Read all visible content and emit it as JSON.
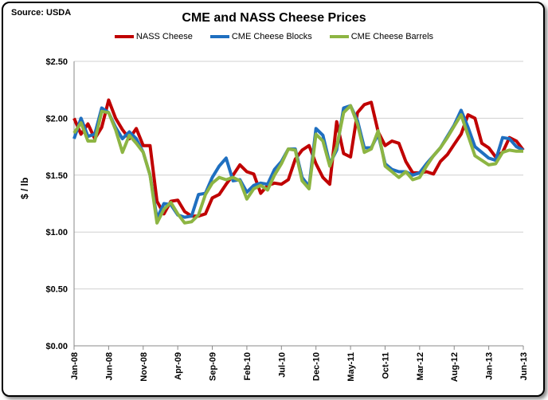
{
  "chart_data": {
    "type": "line",
    "title": "CME and NASS Cheese Prices",
    "source": "Source: USDA",
    "xlabel": "",
    "ylabel": "$ / lb",
    "ylim": [
      0,
      2.5
    ],
    "yticks": [
      "$0.00",
      "$0.50",
      "$1.00",
      "$1.50",
      "$2.00",
      "$2.50"
    ],
    "ytick_values": [
      0,
      0.5,
      1,
      1.5,
      2,
      2.5
    ],
    "xticks": [
      "Jan-08",
      "Jun-08",
      "Nov-08",
      "Apr-09",
      "Sep-09",
      "Feb-10",
      "Jul-10",
      "Dec-10",
      "May-11",
      "Oct-11",
      "Mar-12",
      "Aug-12",
      "Jan-13",
      "Jun-13"
    ],
    "x_start": "Jan-08",
    "x_end": "Jun-13",
    "x_frequency": "monthly",
    "grid": "horizontal",
    "legend": "top",
    "series": [
      {
        "name": "NASS Cheese",
        "color": "#c00000",
        "values": [
          2.0,
          1.86,
          1.95,
          1.82,
          1.92,
          2.16,
          2.0,
          1.9,
          1.82,
          1.91,
          1.76,
          1.76,
          1.27,
          1.16,
          1.27,
          1.28,
          1.18,
          1.14,
          1.14,
          1.16,
          1.3,
          1.33,
          1.42,
          1.5,
          1.59,
          1.53,
          1.51,
          1.34,
          1.41,
          1.43,
          1.42,
          1.46,
          1.64,
          1.72,
          1.76,
          1.6,
          1.48,
          1.42,
          1.97,
          1.69,
          1.66,
          2.05,
          2.12,
          2.14,
          1.88,
          1.76,
          1.8,
          1.78,
          1.62,
          1.52,
          1.52,
          1.53,
          1.51,
          1.62,
          1.68,
          1.77,
          1.86,
          2.03,
          2.0,
          1.78,
          1.74,
          1.66,
          1.7,
          1.83,
          1.8,
          1.72
        ]
      },
      {
        "name": "CME Cheese Blocks",
        "color": "#1f6fc0",
        "values": [
          1.82,
          2.0,
          1.84,
          1.86,
          2.09,
          2.05,
          1.92,
          1.82,
          1.88,
          1.82,
          1.7,
          1.5,
          1.12,
          1.25,
          1.24,
          1.15,
          1.13,
          1.14,
          1.33,
          1.34,
          1.48,
          1.58,
          1.65,
          1.45,
          1.46,
          1.35,
          1.41,
          1.43,
          1.42,
          1.55,
          1.62,
          1.73,
          1.73,
          1.48,
          1.4,
          1.91,
          1.85,
          1.6,
          1.72,
          2.09,
          2.11,
          1.98,
          1.74,
          1.74,
          1.86,
          1.6,
          1.55,
          1.53,
          1.53,
          1.5,
          1.52,
          1.6,
          1.67,
          1.74,
          1.84,
          1.94,
          2.07,
          1.92,
          1.75,
          1.7,
          1.65,
          1.63,
          1.83,
          1.82,
          1.75,
          1.72
        ]
      },
      {
        "name": "CME Cheese Barrels",
        "color": "#8db543",
        "values": [
          1.87,
          1.96,
          1.8,
          1.8,
          2.06,
          2.05,
          1.9,
          1.7,
          1.85,
          1.78,
          1.7,
          1.5,
          1.08,
          1.2,
          1.26,
          1.16,
          1.08,
          1.09,
          1.15,
          1.33,
          1.43,
          1.48,
          1.46,
          1.48,
          1.45,
          1.29,
          1.38,
          1.41,
          1.37,
          1.5,
          1.6,
          1.73,
          1.72,
          1.45,
          1.38,
          1.86,
          1.8,
          1.58,
          1.75,
          2.05,
          2.11,
          1.95,
          1.7,
          1.73,
          1.89,
          1.58,
          1.53,
          1.48,
          1.53,
          1.46,
          1.48,
          1.58,
          1.67,
          1.74,
          1.83,
          1.93,
          2.03,
          1.85,
          1.67,
          1.63,
          1.59,
          1.6,
          1.7,
          1.72,
          1.71,
          1.71
        ]
      }
    ]
  }
}
